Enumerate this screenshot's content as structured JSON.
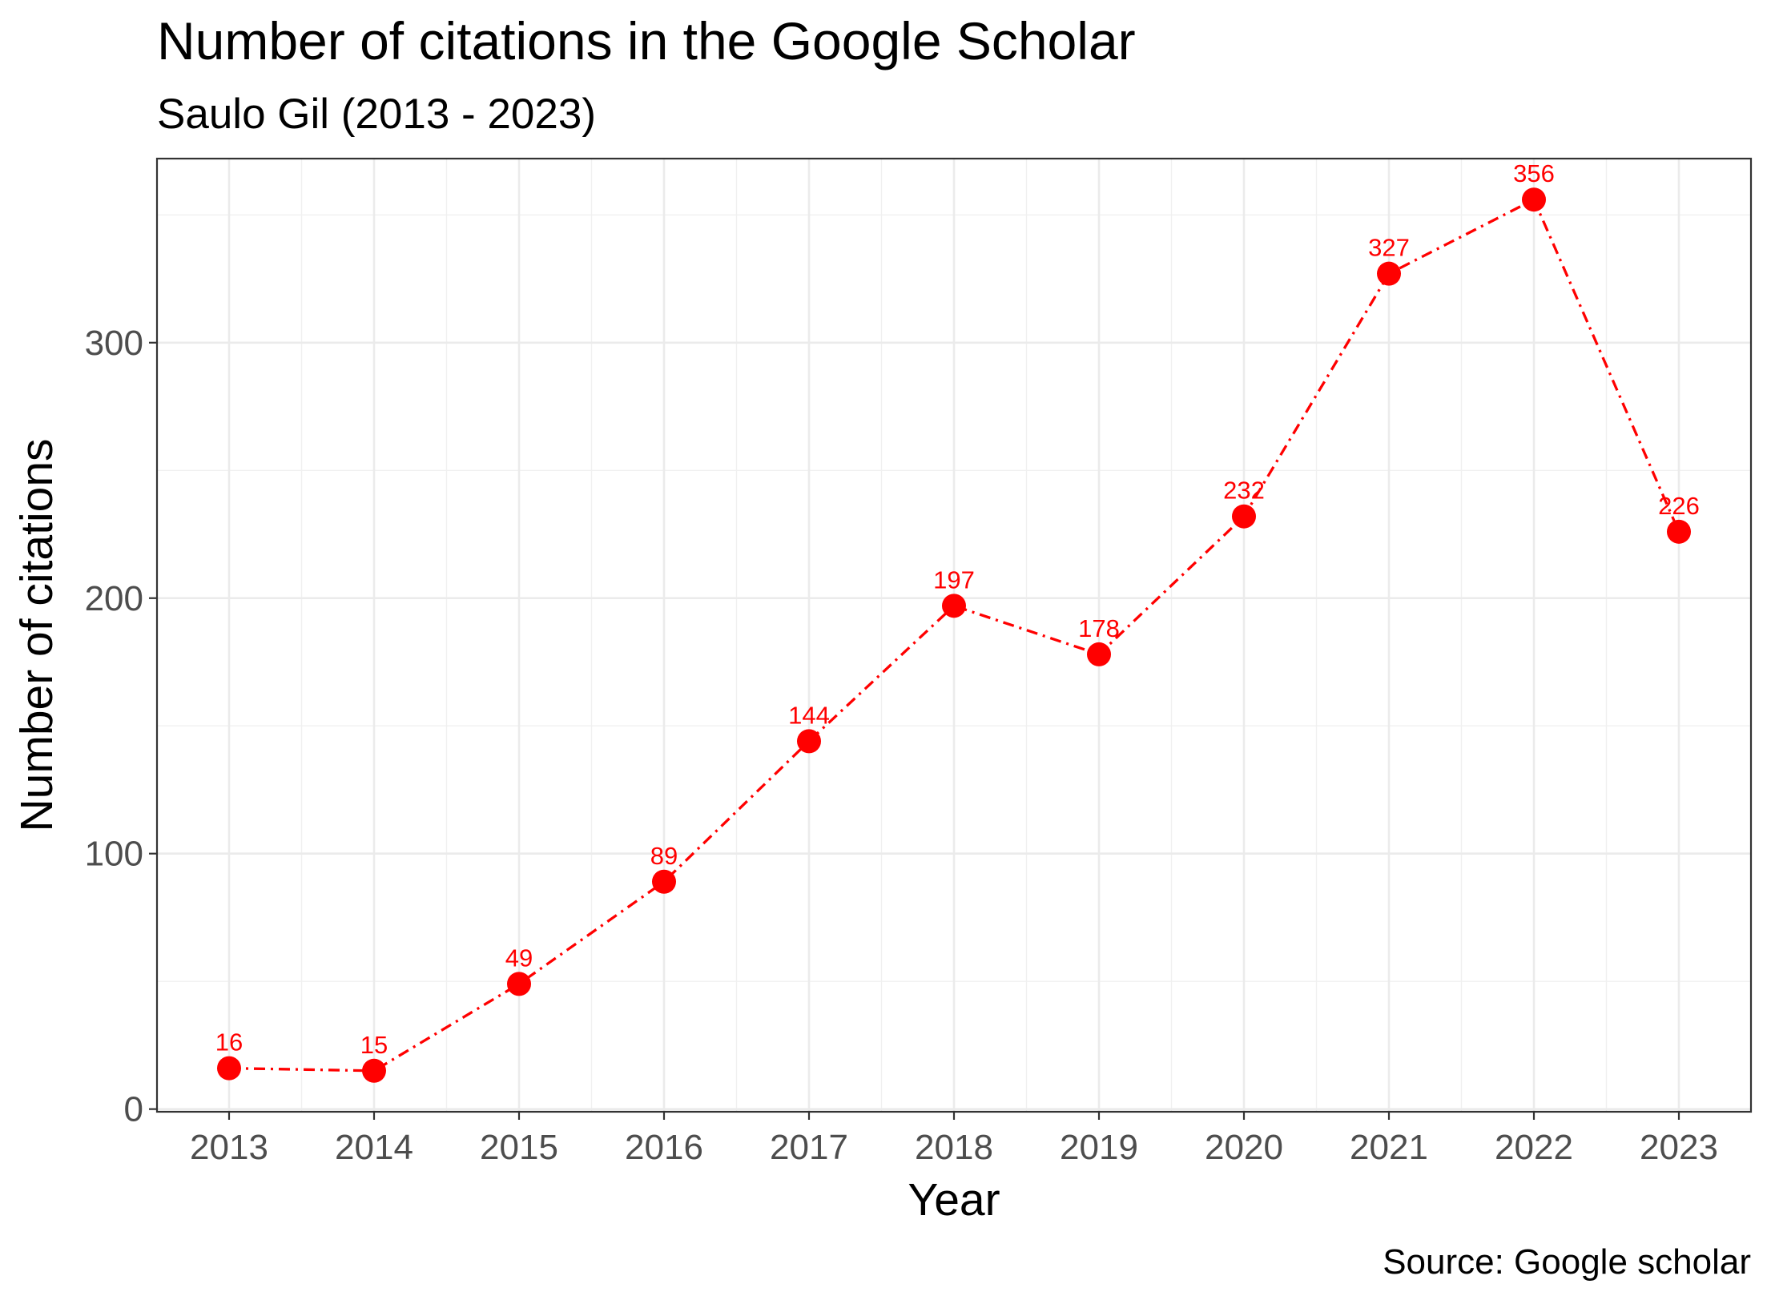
{
  "chart_data": {
    "type": "line",
    "title": "Number of citations in the Google Scholar",
    "subtitle": "Saulo Gil (2013 - 2023)",
    "xlabel": "Year",
    "ylabel": "Number of citations",
    "caption": "Source: Google scholar",
    "x": [
      "2013",
      "2014",
      "2015",
      "2016",
      "2017",
      "2018",
      "2019",
      "2020",
      "2021",
      "2022",
      "2023"
    ],
    "y": [
      16,
      15,
      49,
      89,
      144,
      197,
      178,
      232,
      327,
      356,
      226
    ],
    "data_labels": [
      "16",
      "15",
      "49",
      "89",
      "144",
      "197",
      "178",
      "232",
      "327",
      "356",
      "226"
    ],
    "y_ticks": [
      0,
      100,
      200,
      300
    ],
    "y_tick_labels": [
      "0",
      "100",
      "200",
      "300"
    ],
    "ylim": [
      -1.05,
      372.05
    ],
    "grid": true,
    "line_style": "dash-dot",
    "series_color": "#FF0000"
  }
}
